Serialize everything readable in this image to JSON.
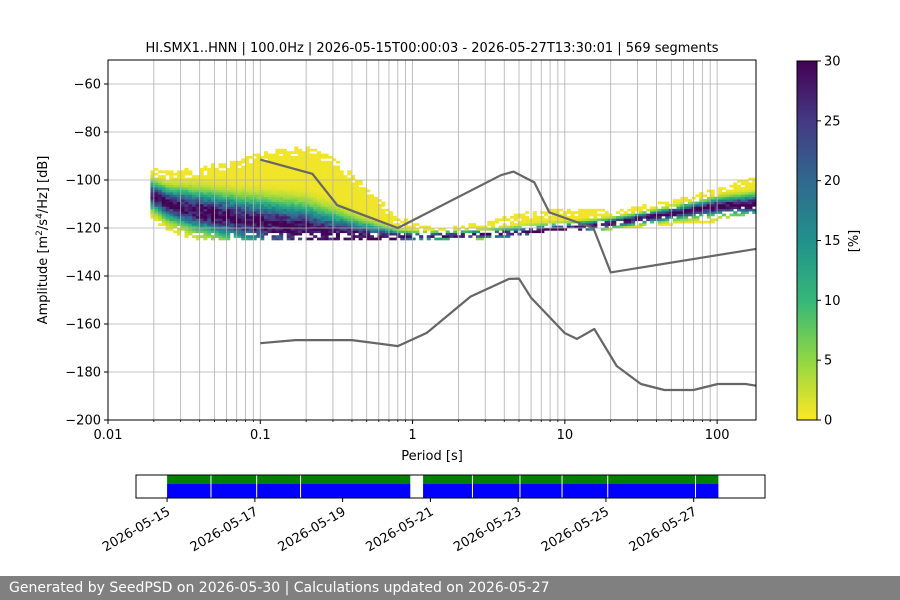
{
  "chart_data": [
    {
      "type": "heatmap",
      "title": "HI.SMX1..HNN | 100.0Hz | 2026-05-15T00:00:03 - 2026-05-27T13:30:01 | 569 segments",
      "xlabel": "Period [s]",
      "ylabel_text": "Amplitude [m",
      "ylabel_parts": [
        "2",
        "/s",
        "4",
        "/Hz] [dB]"
      ],
      "x_scale": "log",
      "xlim": [
        0.01,
        180
      ],
      "ylim": [
        -200,
        -50
      ],
      "x_ticks": [
        {
          "value": 0.01,
          "label": "0.01"
        },
        {
          "value": 0.1,
          "label": "0.1"
        },
        {
          "value": 1,
          "label": "1"
        },
        {
          "value": 10,
          "label": "10"
        },
        {
          "value": 100,
          "label": "100"
        }
      ],
      "y_ticks": [
        {
          "value": -60,
          "label": "−60"
        },
        {
          "value": -80,
          "label": "−80"
        },
        {
          "value": -100,
          "label": "−100"
        },
        {
          "value": -120,
          "label": "−120"
        },
        {
          "value": -140,
          "label": "−140"
        },
        {
          "value": -160,
          "label": "−160"
        },
        {
          "value": -180,
          "label": "−180"
        },
        {
          "value": -200,
          "label": "−200"
        }
      ],
      "grid": true,
      "colorbar": {
        "label": "[%]",
        "range": [
          0,
          30
        ],
        "ticks": [
          {
            "value": 0,
            "label": "0"
          },
          {
            "value": 5,
            "label": "5"
          },
          {
            "value": 10,
            "label": "10"
          },
          {
            "value": 15,
            "label": "15"
          },
          {
            "value": 20,
            "label": "20"
          },
          {
            "value": 25,
            "label": "25"
          },
          {
            "value": 30,
            "label": "30"
          }
        ]
      },
      "upper_noise_model": [
        [
          0.1,
          -91.5
        ],
        [
          0.22,
          -97.4
        ],
        [
          0.32,
          -110.5
        ],
        [
          0.8,
          -120
        ],
        [
          3.8,
          -98
        ],
        [
          4.6,
          -96.5
        ],
        [
          6.3,
          -101
        ],
        [
          7.9,
          -113.5
        ],
        [
          15.4,
          -120
        ],
        [
          20,
          -138.5
        ],
        [
          180,
          -128.7
        ]
      ],
      "lower_noise_model": [
        [
          0.1,
          -168
        ],
        [
          0.17,
          -166.7
        ],
        [
          0.4,
          -166.7
        ],
        [
          0.8,
          -169.2
        ],
        [
          1.24,
          -163.7
        ],
        [
          2.4,
          -148.6
        ],
        [
          4.3,
          -141.2
        ],
        [
          5,
          -141.1
        ],
        [
          6,
          -149.1
        ],
        [
          10,
          -163.8
        ],
        [
          12,
          -166.2
        ],
        [
          15.6,
          -162.1
        ],
        [
          21.9,
          -177.5
        ],
        [
          31.6,
          -185
        ],
        [
          45,
          -187.5
        ],
        [
          70,
          -187.5
        ],
        [
          101,
          -185
        ],
        [
          154,
          -185
        ],
        [
          180,
          -185.7
        ]
      ],
      "psd_mode_curve": [
        [
          0.019,
          -106
        ],
        [
          0.025,
          -110
        ],
        [
          0.04,
          -113
        ],
        [
          0.07,
          -116
        ],
        [
          0.1,
          -118
        ],
        [
          0.2,
          -121
        ],
        [
          0.3,
          -123
        ],
        [
          0.5,
          -124
        ],
        [
          1,
          -123.5
        ],
        [
          2,
          -123
        ],
        [
          5,
          -122
        ],
        [
          10,
          -120.5
        ],
        [
          20,
          -118
        ],
        [
          50,
          -114
        ],
        [
          100,
          -111
        ],
        [
          180,
          -110
        ]
      ],
      "psd_spread": [
        {
          "period": 0.019,
          "upper": -95,
          "lower": -115
        },
        {
          "period": 0.025,
          "upper": -97,
          "lower": -121
        },
        {
          "period": 0.04,
          "upper": -95,
          "lower": -125
        },
        {
          "period": 0.07,
          "upper": -92,
          "lower": -125
        },
        {
          "period": 0.1,
          "upper": -89,
          "lower": -125
        },
        {
          "period": 0.15,
          "upper": -87,
          "lower": -125
        },
        {
          "period": 0.2,
          "upper": -86,
          "lower": -125
        },
        {
          "period": 0.3,
          "upper": -91,
          "lower": -125
        },
        {
          "period": 0.5,
          "upper": -103,
          "lower": -125
        },
        {
          "period": 0.8,
          "upper": -116,
          "lower": -125
        },
        {
          "period": 1.5,
          "upper": -121,
          "lower": -125
        },
        {
          "period": 3,
          "upper": -118,
          "lower": -124
        },
        {
          "period": 6,
          "upper": -113,
          "lower": -122
        },
        {
          "period": 10,
          "upper": -112,
          "lower": -121
        },
        {
          "period": 20,
          "upper": -113,
          "lower": -120
        },
        {
          "period": 50,
          "upper": -109,
          "lower": -118
        },
        {
          "period": 100,
          "upper": -104,
          "lower": -117
        },
        {
          "period": 180,
          "upper": -98,
          "lower": -113
        }
      ]
    },
    {
      "type": "timeline",
      "x_ticks": [
        "2026-05-15",
        "2026-05-17",
        "2026-05-19",
        "2026-05-21",
        "2026-05-23",
        "2026-05-25",
        "2026-05-27"
      ],
      "x_range": [
        "2026-05-14T07:00",
        "2026-05-28T15:00"
      ],
      "available_data": [
        [
          "2026-05-15T00:00",
          "2026-05-20T13:00"
        ],
        [
          "2026-05-20T20:00",
          "2026-05-27T13:30"
        ]
      ],
      "processed_segments": [
        [
          "2026-05-15T00:00",
          "2026-05-20T13:00"
        ],
        [
          "2026-05-20T20:00",
          "2026-05-27T13:30"
        ]
      ],
      "available_color": "#008000",
      "processed_color": "#0000ff",
      "gap_marks": [
        "2026-05-16T00:00",
        "2026-05-17T01:00",
        "2026-05-18T01:00",
        "2026-05-21T23:00",
        "2026-05-23T01:00",
        "2026-05-24T00:00",
        "2026-05-25T01:00",
        "2026-05-27T01:00"
      ]
    }
  ],
  "footer": {
    "text": "Generated by SeedPSD on 2026-05-30 | Calculations updated on 2026-05-27"
  }
}
